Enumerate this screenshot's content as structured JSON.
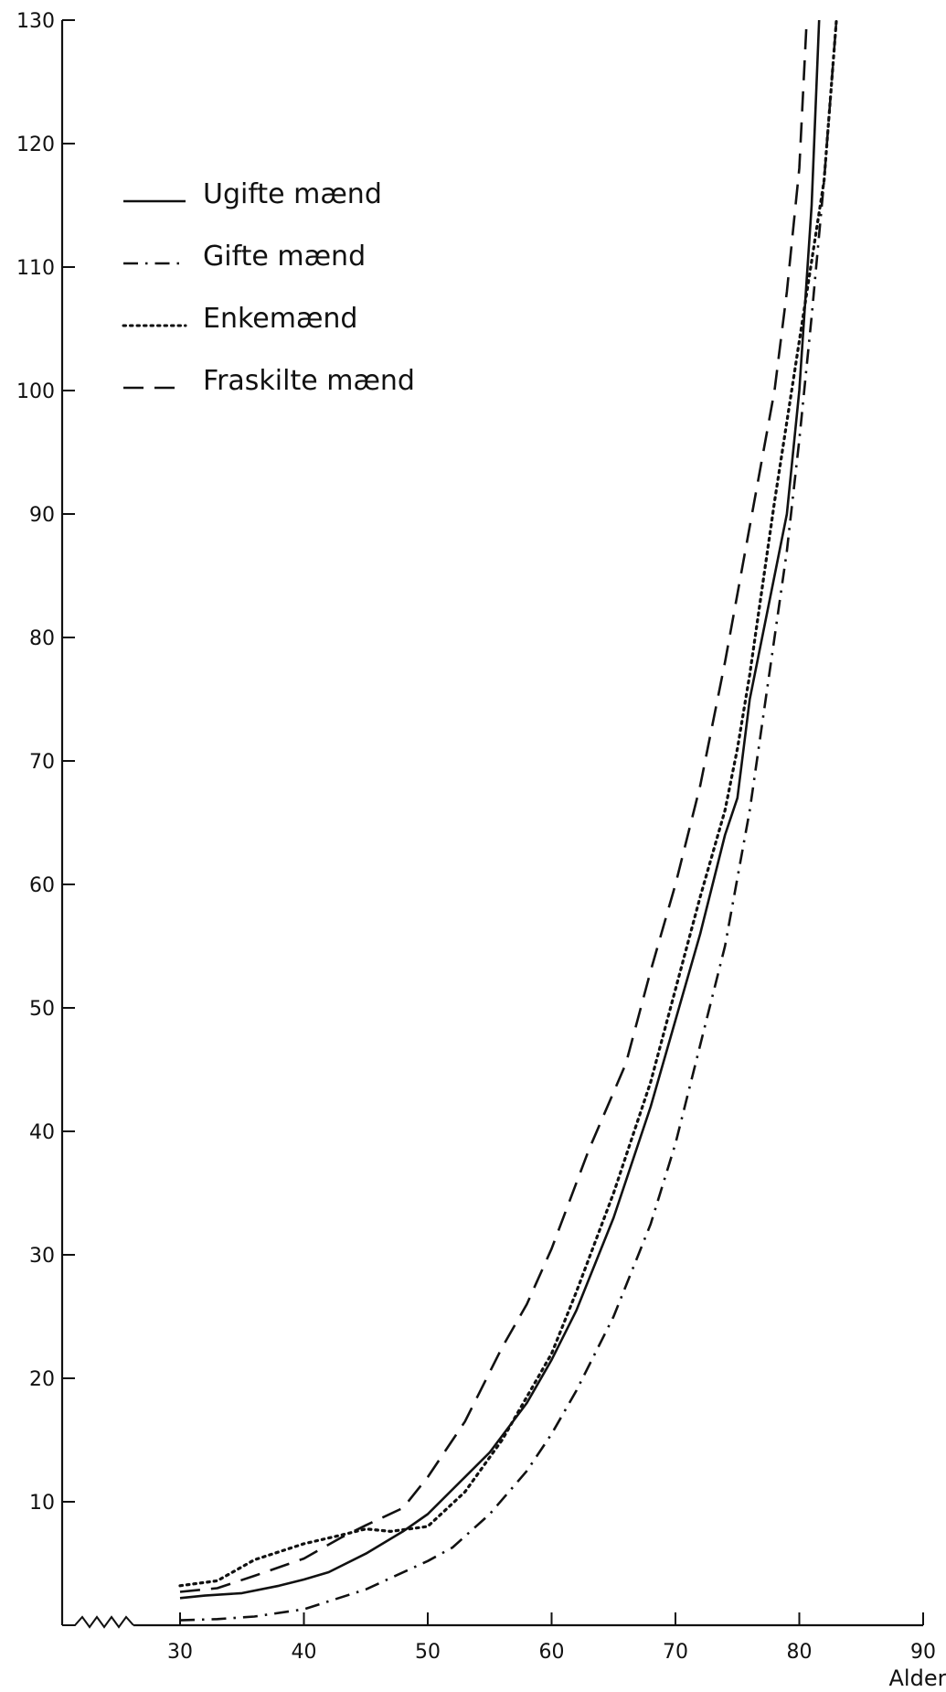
{
  "chart_data": {
    "type": "line",
    "title": "",
    "xlabel": "Alder",
    "ylabel": "",
    "xlim": [
      30,
      90
    ],
    "ylim": [
      0,
      130
    ],
    "x_ticks": [
      30,
      40,
      50,
      60,
      70,
      80,
      90
    ],
    "y_ticks": [
      10,
      20,
      30,
      40,
      50,
      60,
      70,
      80,
      90,
      100,
      110,
      120,
      130
    ],
    "grid": false,
    "legend_position": "top-left",
    "series": [
      {
        "name": "Ugifte mænd",
        "style": "solid",
        "color": "#111111",
        "x": [
          30,
          32,
          35,
          38,
          40,
          42,
          45,
          48,
          50,
          52,
          55,
          58,
          60,
          62,
          65,
          68,
          70,
          72,
          74,
          75,
          76,
          78,
          79,
          80,
          81,
          81.6
        ],
        "y": [
          2.2,
          2.4,
          2.6,
          3.2,
          3.7,
          4.3,
          5.8,
          7.6,
          9,
          11,
          14,
          18,
          21.5,
          25.5,
          33,
          42,
          49,
          56,
          64,
          67,
          75,
          85,
          90,
          100,
          115,
          130
        ]
      },
      {
        "name": "Gifte mænd",
        "style": "dashdot",
        "color": "#111111",
        "x": [
          30,
          33,
          36,
          40,
          45,
          50,
          52,
          55,
          58,
          60,
          62,
          65,
          68,
          70,
          72,
          74,
          76,
          78,
          79,
          80,
          81,
          82,
          83
        ],
        "y": [
          0.4,
          0.5,
          0.7,
          1.3,
          2.9,
          5.2,
          6.3,
          9,
          12.5,
          15.5,
          19,
          25,
          32.5,
          39,
          47,
          55,
          66,
          80,
          87,
          96,
          106,
          117,
          130
        ]
      },
      {
        "name": "Enkemænd",
        "style": "dotted",
        "color": "#111111",
        "x": [
          30,
          33,
          36,
          40,
          43,
          45,
          47,
          50,
          53,
          56,
          58,
          60,
          62,
          65,
          68,
          70,
          72,
          74,
          75,
          76,
          78,
          80,
          82,
          83
        ],
        "y": [
          3.2,
          3.6,
          5.3,
          6.6,
          7.3,
          7.8,
          7.6,
          8,
          10.8,
          15,
          18.5,
          22,
          27,
          35,
          44,
          51.5,
          59,
          66,
          71,
          77,
          91,
          104,
          117,
          130
        ]
      },
      {
        "name": "Fraskilte mænd",
        "style": "dashed",
        "color": "#111111",
        "x": [
          30,
          33,
          36,
          40,
          43,
          45,
          48,
          50,
          53,
          56,
          58,
          60,
          63,
          66,
          68,
          70,
          72,
          74,
          76,
          78,
          79,
          80,
          80.6
        ],
        "y": [
          2.7,
          3,
          4,
          5.4,
          7.1,
          8.1,
          9.5,
          12,
          16.5,
          22.5,
          26,
          30.5,
          38.5,
          45.5,
          53,
          60,
          68,
          78,
          89,
          100,
          108,
          118,
          130
        ]
      }
    ]
  }
}
